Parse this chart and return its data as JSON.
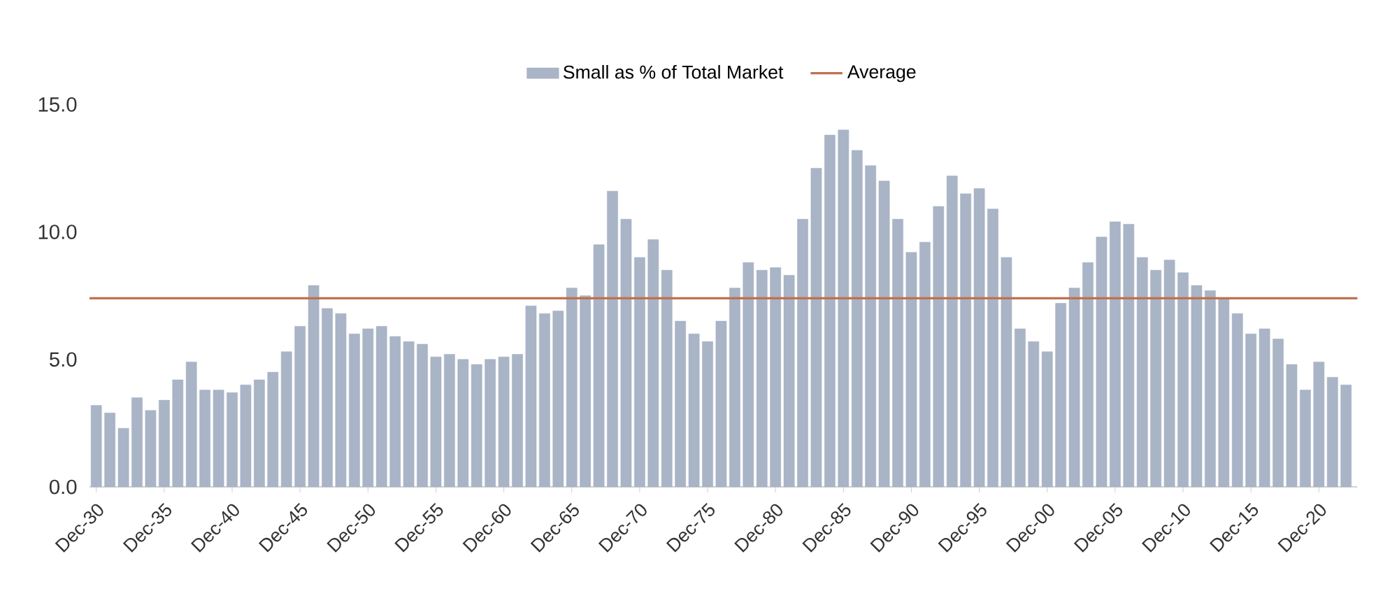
{
  "chart_data": {
    "type": "bar",
    "x": [
      "1930-12",
      "1931-12",
      "1932-12",
      "1933-12",
      "1934-12",
      "1935-12",
      "1936-12",
      "1937-12",
      "1938-12",
      "1939-12",
      "1940-12",
      "1941-12",
      "1942-12",
      "1943-12",
      "1944-12",
      "1945-12",
      "1946-12",
      "1947-12",
      "1948-12",
      "1949-12",
      "1950-12",
      "1951-12",
      "1952-12",
      "1953-12",
      "1954-12",
      "1955-12",
      "1956-12",
      "1957-12",
      "1958-12",
      "1959-12",
      "1960-12",
      "1961-12",
      "1962-12",
      "1963-12",
      "1964-12",
      "1965-12",
      "1966-12",
      "1967-12",
      "1968-12",
      "1969-12",
      "1970-12",
      "1971-12",
      "1972-12",
      "1973-12",
      "1974-12",
      "1975-12",
      "1976-12",
      "1977-12",
      "1978-12",
      "1979-12",
      "1980-12",
      "1981-12",
      "1982-12",
      "1983-12",
      "1984-12",
      "1985-12",
      "1986-12",
      "1987-12",
      "1988-12",
      "1989-12",
      "1990-12",
      "1991-12",
      "1992-12",
      "1993-12",
      "1994-12",
      "1995-12",
      "1996-12",
      "1997-12",
      "1998-12",
      "1999-12",
      "2000-12",
      "2001-12",
      "2002-12",
      "2003-12",
      "2004-12",
      "2005-12",
      "2006-12",
      "2007-12",
      "2008-12",
      "2009-12",
      "2010-12",
      "2011-12",
      "2012-12",
      "2013-12",
      "2014-12",
      "2015-12",
      "2016-12",
      "2017-12",
      "2018-12",
      "2019-12",
      "2020-12",
      "2021-12",
      "2022-12"
    ],
    "series": [
      {
        "name": "Small as % of Total Market",
        "color": "#a9b4c6",
        "values": [
          3.2,
          2.9,
          2.3,
          3.5,
          3.0,
          3.4,
          4.2,
          4.9,
          3.8,
          3.8,
          3.7,
          4.0,
          4.2,
          4.5,
          5.3,
          6.3,
          7.9,
          7.0,
          6.8,
          6.0,
          6.2,
          6.3,
          5.9,
          5.7,
          5.6,
          5.1,
          5.2,
          5.0,
          4.8,
          5.0,
          5.1,
          5.2,
          7.1,
          6.8,
          6.9,
          7.8,
          7.5,
          9.5,
          11.6,
          10.5,
          9.0,
          9.7,
          8.5,
          6.5,
          6.0,
          5.7,
          6.5,
          7.8,
          8.8,
          8.5,
          8.6,
          8.3,
          10.5,
          12.5,
          13.8,
          14.0,
          13.2,
          12.6,
          12.0,
          10.5,
          9.2,
          9.6,
          11.0,
          12.2,
          11.5,
          11.7,
          10.9,
          9.0,
          6.2,
          5.7,
          5.3,
          7.2,
          7.8,
          8.8,
          9.8,
          10.4,
          10.3,
          9.0,
          8.5,
          8.9,
          8.4,
          7.9,
          7.7,
          7.4,
          6.8,
          6.0,
          6.2,
          5.8,
          4.8,
          3.8,
          4.9,
          4.3,
          4.0
        ]
      }
    ],
    "ref_lines": [
      {
        "axis": "y",
        "value": 7.4,
        "label": "Average",
        "color": "#c0714f"
      }
    ],
    "xlim": [
      "1930-06",
      "2023-10"
    ],
    "xticks": [
      {
        "value": "1930-12",
        "label": "Dec-30"
      },
      {
        "value": "1935-12",
        "label": "Dec-35"
      },
      {
        "value": "1940-12",
        "label": "Dec-40"
      },
      {
        "value": "1945-12",
        "label": "Dec-45"
      },
      {
        "value": "1950-12",
        "label": "Dec-50"
      },
      {
        "value": "1955-12",
        "label": "Dec-55"
      },
      {
        "value": "1960-12",
        "label": "Dec-60"
      },
      {
        "value": "1965-12",
        "label": "Dec-65"
      },
      {
        "value": "1970-12",
        "label": "Dec-70"
      },
      {
        "value": "1975-12",
        "label": "Dec-75"
      },
      {
        "value": "1980-12",
        "label": "Dec-80"
      },
      {
        "value": "1985-12",
        "label": "Dec-85"
      },
      {
        "value": "1990-12",
        "label": "Dec-90"
      },
      {
        "value": "1995-12",
        "label": "Dec-95"
      },
      {
        "value": "2000-12",
        "label": "Dec-00"
      },
      {
        "value": "2005-12",
        "label": "Dec-05"
      },
      {
        "value": "2010-12",
        "label": "Dec-10"
      },
      {
        "value": "2015-12",
        "label": "Dec-15"
      },
      {
        "value": "2020-12",
        "label": "Dec-20"
      }
    ],
    "ylim": [
      0,
      15
    ],
    "yticks": [
      {
        "value": 0,
        "label": "0.0"
      },
      {
        "value": 5,
        "label": "5.0"
      },
      {
        "value": 10,
        "label": "10.0"
      },
      {
        "value": 15,
        "label": "15.0"
      }
    ],
    "grid": false,
    "legend": "top"
  }
}
